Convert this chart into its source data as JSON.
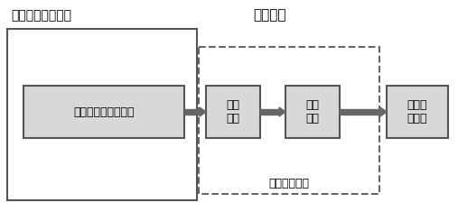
{
  "bg_color": "#ffffff",
  "border_color": "#555555",
  "box_fill_light": "#d8d8d8",
  "box_fill_white": "#ffffff",
  "arrow_color": "#666666",
  "dashed_color": "#666666",
  "text_color": "#000000",
  "label_magnetic_module": "磁场强度检测模块",
  "label_obstacle_module": "避障模块",
  "label_signal_processing": "数字信号处理",
  "label_circuit": "磁场强强度检测电路",
  "label_data_convert": "数据\n转换",
  "label_digital_filter": "数字\n滤波",
  "label_logic_analysis": "逻辑分\n析模块",
  "figsize": [
    5.07,
    2.45
  ],
  "dpi": 100
}
